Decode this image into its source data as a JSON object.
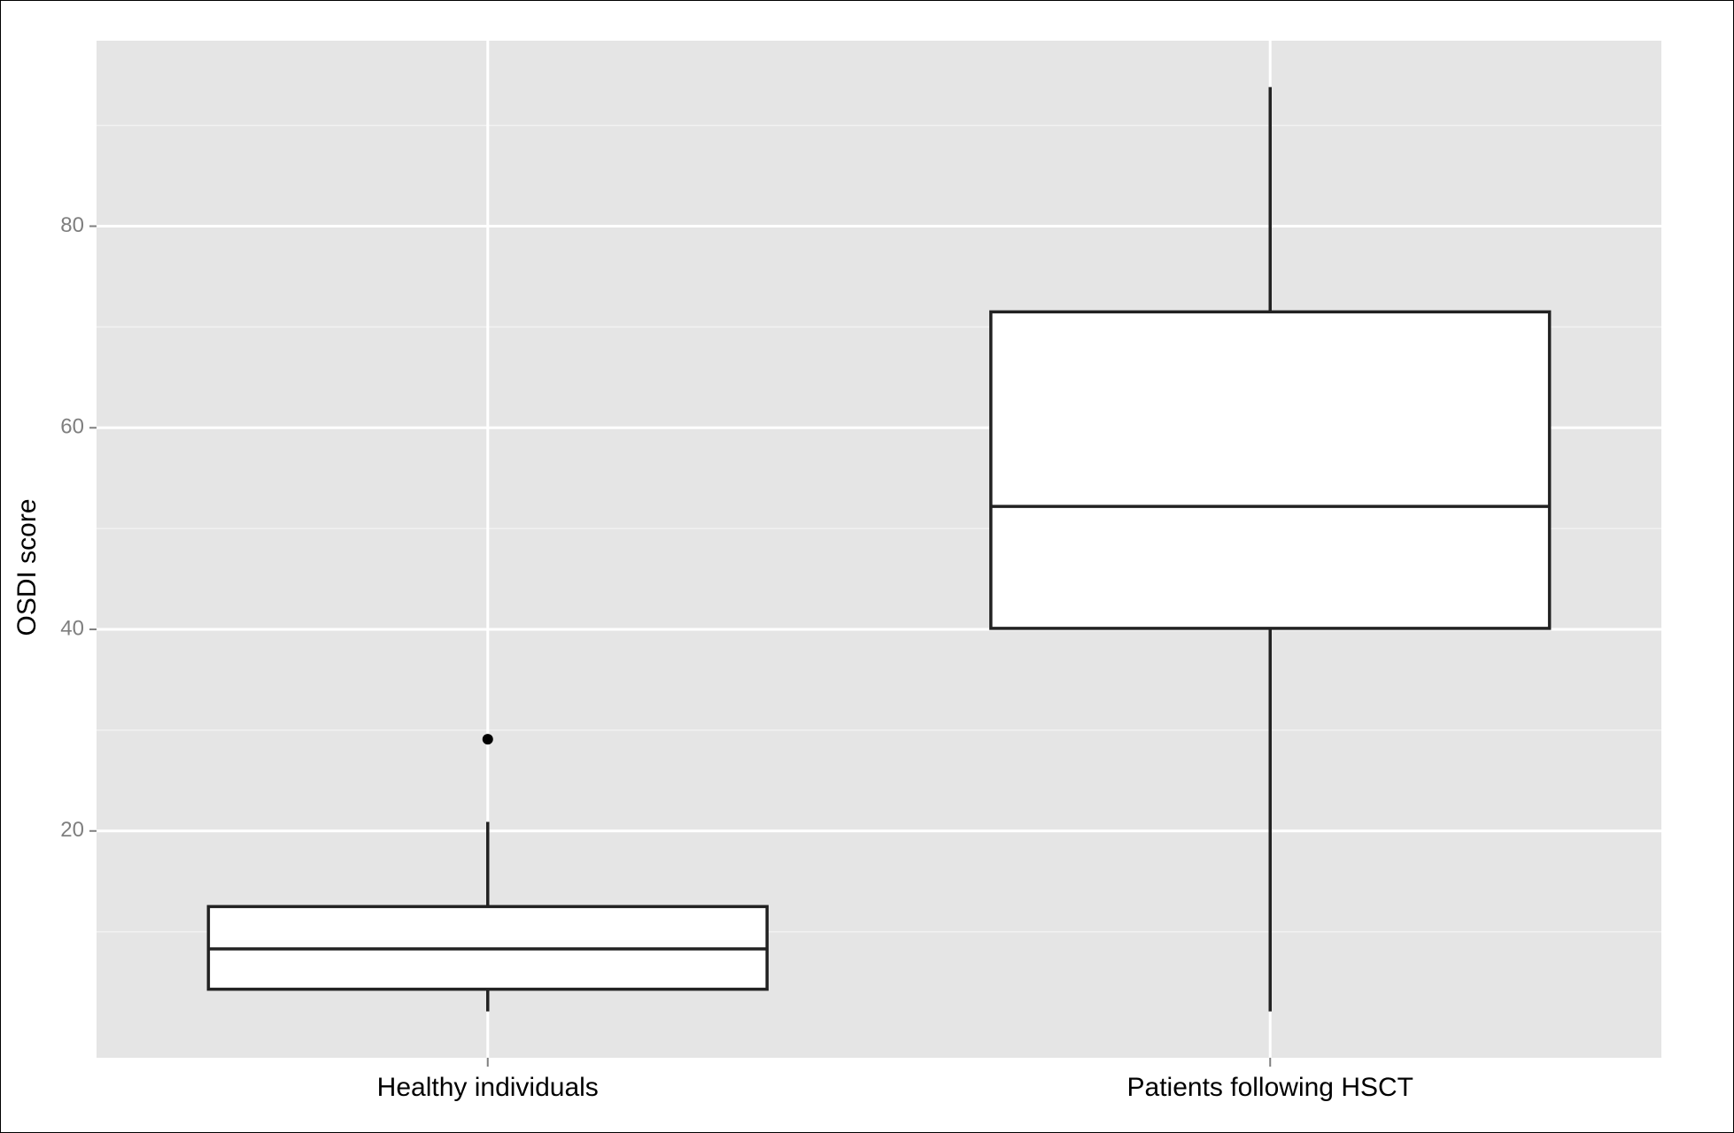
{
  "chart_data": {
    "type": "box",
    "y_label": "OSDI score",
    "boxes": [
      {
        "category": "Healthy individuals",
        "whisker_low": 2.1,
        "q1": 4.3,
        "median": 8.3,
        "q3": 12.5,
        "whisker_high": 20.9,
        "outliers": [
          29.1
        ]
      },
      {
        "category": "Patients following HSCT",
        "whisker_low": 2.1,
        "q1": 40.1,
        "median": 52.2,
        "q3": 71.5,
        "whisker_high": 93.8,
        "outliers": []
      }
    ],
    "ylim": [
      -2.5,
      98.4
    ],
    "yticks": [
      20,
      40,
      60,
      80
    ],
    "minor_yticks": [
      10,
      30,
      50,
      70,
      90
    ],
    "grid": true,
    "panel_color": "#e5e5e5",
    "box_fill": "#ffffff",
    "line_color": "#222222"
  }
}
